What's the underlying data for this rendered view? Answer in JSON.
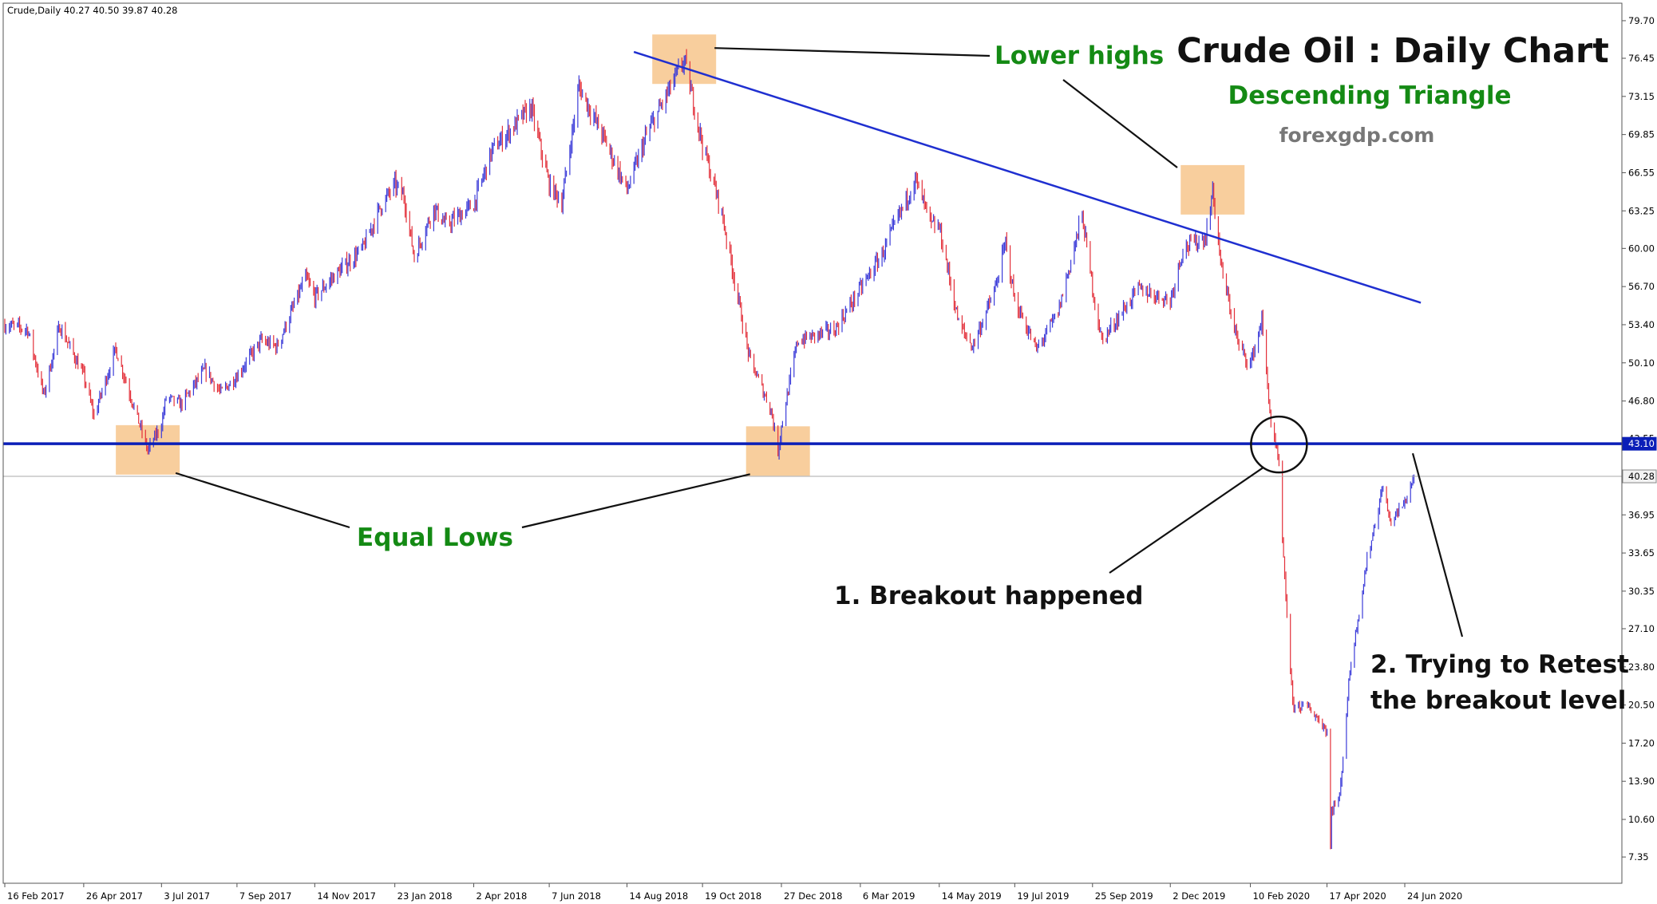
{
  "chart_data": {
    "type": "candlestick",
    "symbol_info": "Crude,Daily  40.27 40.50 39.87 40.28",
    "title": "Crude Oil : Daily Chart",
    "subtitle": "Descending Triangle",
    "source_text": "forexgdp.com",
    "ylim": [
      5.7,
      80.8
    ],
    "y_ticks": [
      "79.70",
      "76.45",
      "73.15",
      "69.85",
      "66.55",
      "63.25",
      "60.00",
      "56.70",
      "53.40",
      "50.10",
      "46.80",
      "43.55",
      "40.28",
      "36.95",
      "33.65",
      "30.35",
      "27.10",
      "23.80",
      "20.50",
      "17.20",
      "13.90",
      "10.60",
      "7.35"
    ],
    "x_ticks": [
      "16 Feb 2017",
      "26 Apr 2017",
      "3 Jul 2017",
      "7 Sep 2017",
      "14 Nov 2017",
      "23 Jan 2018",
      "2 Apr 2018",
      "7 Jun 2018",
      "14 Aug 2018",
      "19 Oct 2018",
      "27 Dec 2018",
      "6 Mar 2019",
      "14 May 2019",
      "19 Jul 2019",
      "25 Sep 2019",
      "2 Dec 2019",
      "10 Feb 2020",
      "17 Apr 2020",
      "24 Jun 2020"
    ],
    "price_path": [
      [
        "16 Feb 2017",
        53.4
      ],
      [
        "8 Mar 2017",
        53.0
      ],
      [
        "22 Mar 2017",
        47.3
      ],
      [
        "5 Apr 2017",
        53.3
      ],
      [
        "26 Apr 2017",
        49.0
      ],
      [
        "5 May 2017",
        45.5
      ],
      [
        "24 May 2017",
        51.3
      ],
      [
        "21 Jun 2017",
        42.5
      ],
      [
        "3 Jul 2017",
        44.8
      ],
      [
        "7 Jul 2017",
        47.1
      ],
      [
        "20 Jul 2017",
        46.5
      ],
      [
        "10 Aug 2017",
        49.5
      ],
      [
        "24 Aug 2017",
        47.5
      ],
      [
        "7 Sep 2017",
        49.0
      ],
      [
        "28 Sep 2017",
        52.0
      ],
      [
        "12 Oct 2017",
        51.5
      ],
      [
        "6 Nov 2017",
        57.5
      ],
      [
        "14 Nov 2017",
        55.8
      ],
      [
        "30 Nov 2017",
        57.5
      ],
      [
        "26 Dec 2017",
        60.0
      ],
      [
        "10 Jan 2018",
        63.5
      ],
      [
        "23 Jan 2018",
        65.5
      ],
      [
        "31 Jan 2018",
        64.5
      ],
      [
        "9 Feb 2018",
        59.2
      ],
      [
        "26 Feb 2018",
        63.5
      ],
      [
        "9 Mar 2018",
        62.0
      ],
      [
        "2 Apr 2018",
        63.8
      ],
      [
        "18 Apr 2018",
        68.5
      ],
      [
        "22 May 2018",
        72.2
      ],
      [
        "7 Jun 2018",
        65.5
      ],
      [
        "18 Jun 2018",
        64.0
      ],
      [
        "3 Jul 2018",
        74.0
      ],
      [
        "25 Jul 2018",
        69.5
      ],
      [
        "14 Aug 2018",
        65.0
      ],
      [
        "31 Aug 2018",
        69.8
      ],
      [
        "3 Oct 2018",
        76.3
      ],
      [
        "19 Oct 2018",
        69.0
      ],
      [
        "5 Nov 2018",
        63.0
      ],
      [
        "29 Nov 2018",
        50.5
      ],
      [
        "18 Dec 2018",
        46.0
      ],
      [
        "24 Dec 2018",
        42.4
      ],
      [
        "27 Dec 2018",
        44.6
      ],
      [
        "10 Jan 2019",
        52.0
      ],
      [
        "12 Feb 2019",
        53.0
      ],
      [
        "6 Mar 2019",
        56.5
      ],
      [
        "25 Mar 2019",
        59.5
      ],
      [
        "23 Apr 2019",
        66.0
      ],
      [
        "7 May 2019",
        62.0
      ],
      [
        "14 May 2019",
        61.8
      ],
      [
        "31 May 2019",
        53.5
      ],
      [
        "12 Jun 2019",
        51.5
      ],
      [
        "2 Jul 2019",
        56.5
      ],
      [
        "11 Jul 2019",
        60.5
      ],
      [
        "19 Jul 2019",
        55.5
      ],
      [
        "7 Aug 2019",
        51.2
      ],
      [
        "26 Aug 2019",
        54.5
      ],
      [
        "16 Sep 2019",
        62.9
      ],
      [
        "25 Sep 2019",
        56.5
      ],
      [
        "3 Oct 2019",
        52.0
      ],
      [
        "4 Nov 2019",
        56.5
      ],
      [
        "2 Dec 2019",
        55.5
      ],
      [
        "13 Dec 2019",
        60.0
      ],
      [
        "2 Jan 2020",
        61.0
      ],
      [
        "8 Jan 2020",
        65.0
      ],
      [
        "16 Jan 2020",
        58.0
      ],
      [
        "31 Jan 2020",
        51.5
      ],
      [
        "10 Feb 2020",
        50.0
      ],
      [
        "20 Feb 2020",
        53.8
      ],
      [
        "28 Feb 2020",
        44.8
      ],
      [
        "6 Mar 2020",
        41.3
      ],
      [
        "9 Mar 2020",
        34.5
      ],
      [
        "18 Mar 2020",
        20.5
      ],
      [
        "1 Apr 2020",
        20.3
      ],
      [
        "17 Apr 2020",
        18.3
      ],
      [
        "20 Apr 2020",
        8.0
      ],
      [
        "21 Apr 2020",
        11.5
      ],
      [
        "28 Apr 2020",
        12.5
      ],
      [
        "7 May 2020",
        23.5
      ],
      [
        "22 May 2020",
        33.0
      ],
      [
        "5 Jun 2020",
        39.5
      ],
      [
        "11 Jun 2020",
        36.3
      ],
      [
        "24 Jun 2020",
        38.0
      ],
      [
        "2 Jul 2020",
        40.28
      ]
    ],
    "support_level": 43.1,
    "current_price": 40.28,
    "trendline": {
      "start": [
        "20 Aug 2018",
        77.0
      ],
      "end": [
        "8 Jul 2020",
        55.3
      ]
    },
    "colors": {
      "bull": "#3b3bd9",
      "bear": "#e3303a",
      "support": "#0b1fb8",
      "trendline": "#1f2fd0",
      "highlight": "#f7c58c",
      "current": "#a9a9a9",
      "annotation_green": "#148a14"
    },
    "annotations": {
      "lower_highs": "Lower highs",
      "equal_lows": "Equal Lows",
      "breakout": "1. Breakout happened",
      "retest_line1": "2. Trying to Retest",
      "retest_line2": "the breakout level"
    }
  }
}
